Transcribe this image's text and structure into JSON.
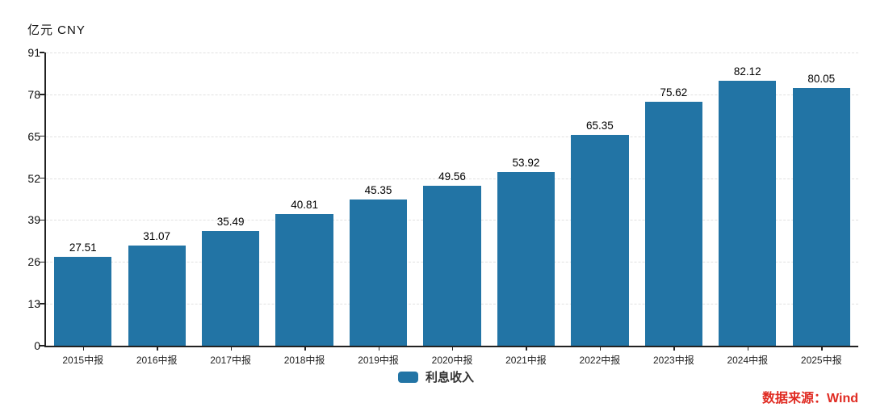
{
  "chart_data": {
    "type": "bar",
    "title": "",
    "unit_label": "亿元  CNY",
    "categories": [
      "2015中报",
      "2016中报",
      "2017中报",
      "2018中报",
      "2019中报",
      "2020中报",
      "2021中报",
      "2022中报",
      "2023中报",
      "2024中报",
      "2025中报"
    ],
    "series": [
      {
        "name": "利息收入",
        "color": "#2274a5",
        "values": [
          27.51,
          31.07,
          35.49,
          40.81,
          45.35,
          49.56,
          53.92,
          65.35,
          75.62,
          82.12,
          80.05
        ]
      }
    ],
    "ylim": [
      0,
      91
    ],
    "yticks": [
      0,
      13,
      26,
      39,
      52,
      65,
      78,
      91
    ],
    "grid": "horizontal-dashed",
    "legend_position": "bottom-center",
    "value_labels": "above-bars"
  },
  "footer": {
    "source_label": "数据来源：Wind"
  },
  "colors": {
    "bar": "#2274a5",
    "axis": "#222222",
    "gridline": "#e0e0e0",
    "source_text": "#e02b22"
  }
}
